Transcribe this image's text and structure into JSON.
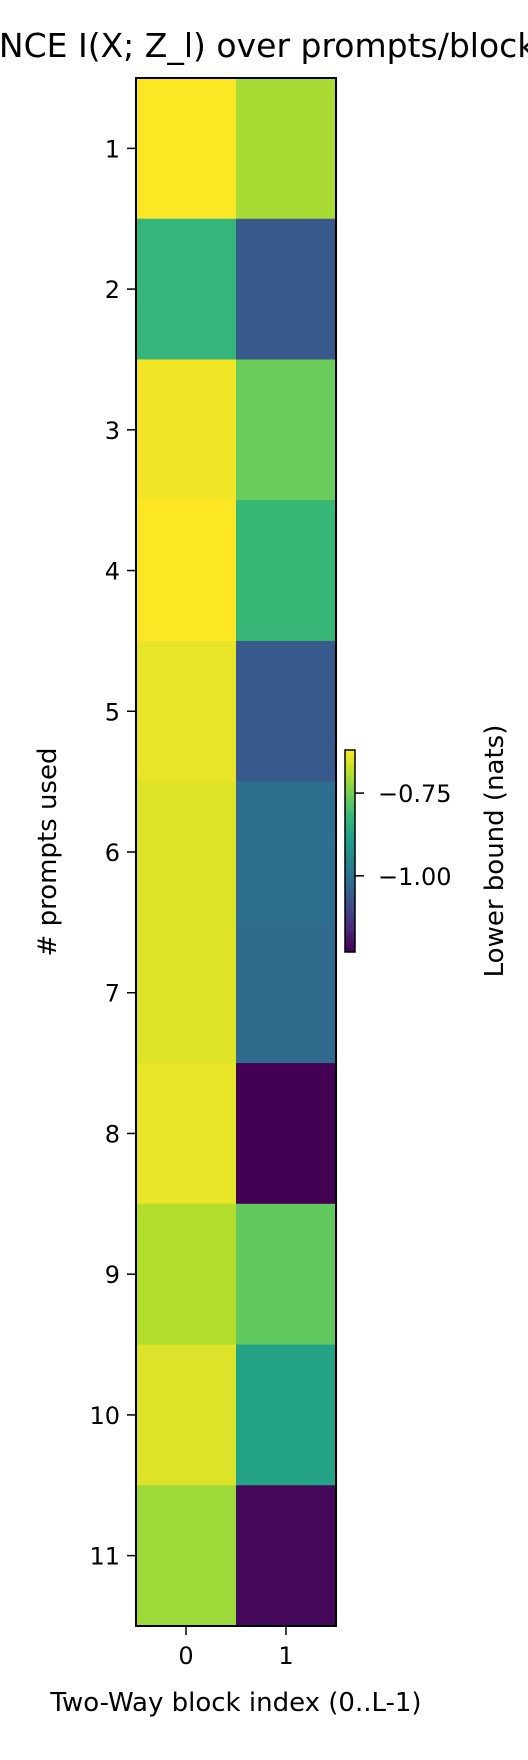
{
  "chart_data": {
    "type": "heatmap",
    "title": "InfoNCE  I(X; Z_l) over prompts/blocks",
    "xlabel": "Two-Way block index (0..L-1)",
    "ylabel": "# prompts used",
    "x_categories": [
      "0",
      "1"
    ],
    "y_categories": [
      "1",
      "2",
      "3",
      "4",
      "5",
      "6",
      "7",
      "8",
      "9",
      "10",
      "11"
    ],
    "values": [
      [
        -0.62,
        -0.7
      ],
      [
        -0.83,
        -1.06
      ],
      [
        -0.63,
        -0.76
      ],
      [
        -0.62,
        -0.82
      ],
      [
        -0.64,
        -1.06
      ],
      [
        -0.65,
        -1.01
      ],
      [
        -0.65,
        -1.02
      ],
      [
        -0.64,
        -1.23
      ],
      [
        -0.69,
        -0.77
      ],
      [
        -0.65,
        -0.88
      ],
      [
        -0.71,
        -1.22
      ]
    ],
    "colorbar": {
      "label": "Lower bound (nats)",
      "range": [
        -1.23,
        -0.62
      ],
      "ticks": [
        -0.75,
        -1.0
      ],
      "tick_labels": [
        "−0.75",
        "−1.00"
      ],
      "colormap": "viridis"
    }
  }
}
